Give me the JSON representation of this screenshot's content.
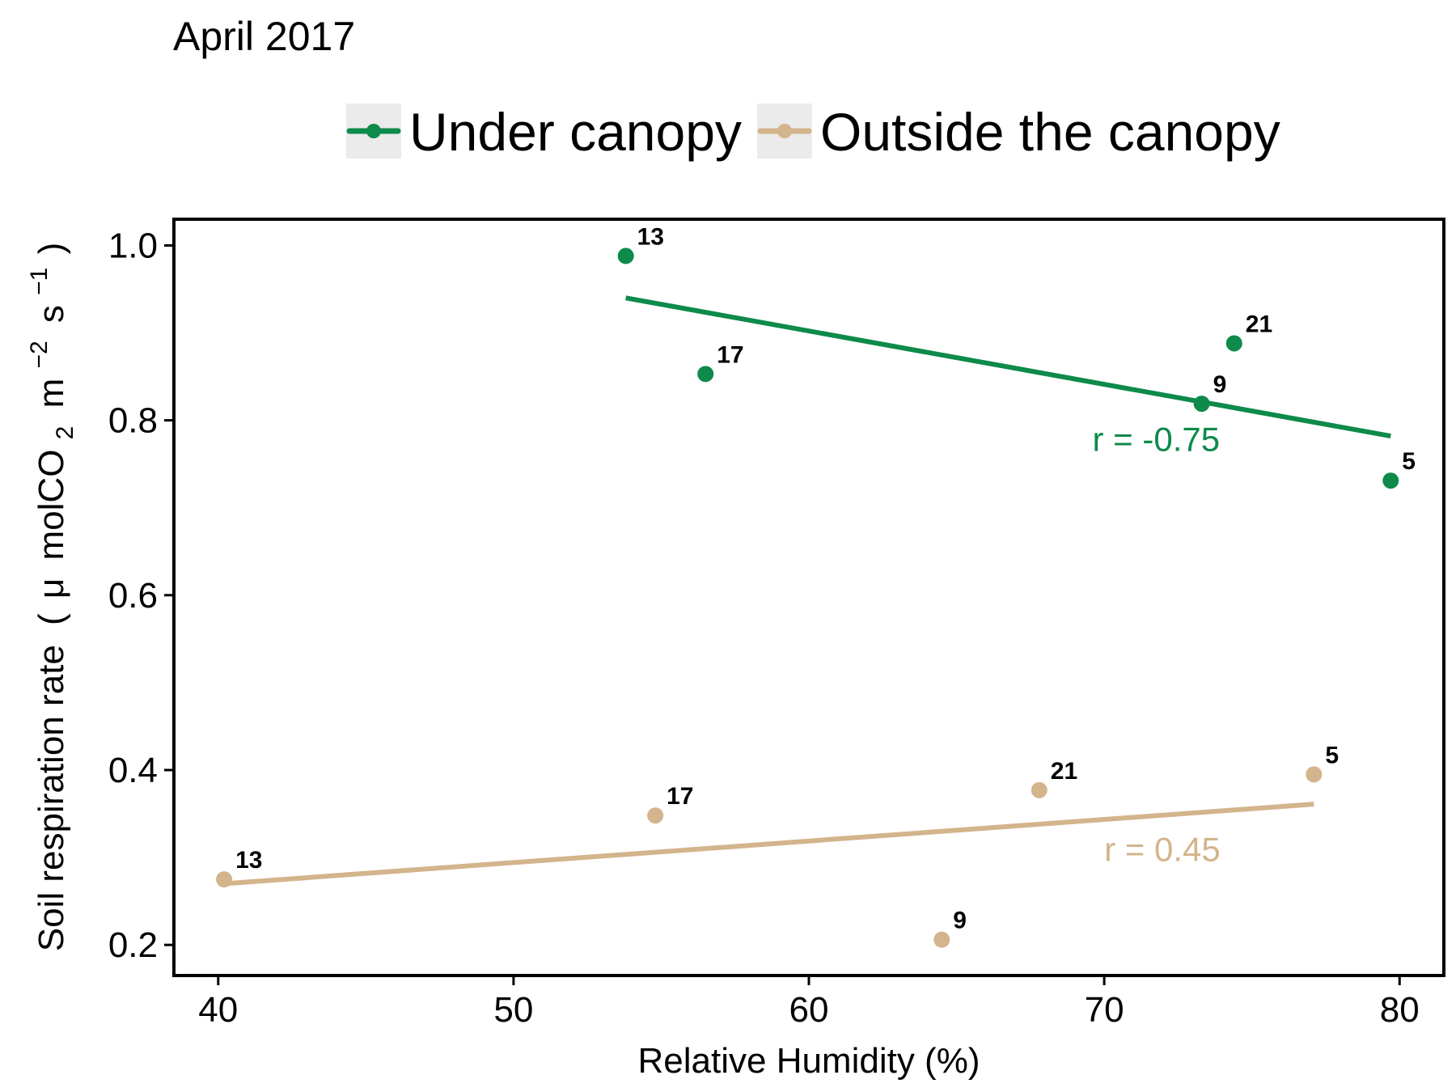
{
  "chart_data": {
    "type": "scatter",
    "title": "April 2017",
    "xlabel": "Relative Humidity (%)",
    "ylabel": {
      "main": "Soil respiration rate",
      "unit_open": "(",
      "mu": "μ",
      "mol": "molCO",
      "sub2": "2",
      "m": "m",
      "sup_m": "−2",
      "s": "s",
      "sup_s": "−1",
      "unit_close": ")"
    },
    "xlim": [
      38.5,
      81.5
    ],
    "ylim": [
      0.165,
      1.03
    ],
    "x_ticks": [
      40,
      50,
      60,
      70,
      80
    ],
    "x_tick_labels": [
      "40",
      "50",
      "60",
      "70",
      "80"
    ],
    "y_ticks": [
      0.2,
      0.4,
      0.6,
      0.8,
      1.0
    ],
    "y_tick_labels": [
      "0.2",
      "0.4",
      "0.6",
      "0.8",
      "1.0"
    ],
    "grid": false,
    "legend_position": "top",
    "series": [
      {
        "name": "Under canopy",
        "color": "#0e8a4a",
        "points": [
          {
            "x": 53.8,
            "y": 0.988,
            "label": "13"
          },
          {
            "x": 56.5,
            "y": 0.853,
            "label": "17"
          },
          {
            "x": 73.3,
            "y": 0.819,
            "label": "9"
          },
          {
            "x": 74.4,
            "y": 0.888,
            "label": "21"
          },
          {
            "x": 79.7,
            "y": 0.731,
            "label": "5"
          }
        ],
        "trend": {
          "x": [
            53.8,
            79.7
          ],
          "y": [
            0.94,
            0.782
          ]
        },
        "r_label": "r = -0.75",
        "r_label_pos": {
          "x": 69.6,
          "y": 0.765
        }
      },
      {
        "name": "Outside the canopy",
        "color": "#d4b48c",
        "points": [
          {
            "x": 40.2,
            "y": 0.275,
            "label": "13"
          },
          {
            "x": 54.8,
            "y": 0.348,
            "label": "17"
          },
          {
            "x": 64.5,
            "y": 0.206,
            "label": "9"
          },
          {
            "x": 67.8,
            "y": 0.377,
            "label": "21"
          },
          {
            "x": 77.1,
            "y": 0.395,
            "label": "5"
          }
        ],
        "trend": {
          "x": [
            40.2,
            77.1
          ],
          "y": [
            0.27,
            0.361
          ]
        },
        "r_label": "r = 0.45",
        "r_label_pos": {
          "x": 70.0,
          "y": 0.296
        }
      }
    ]
  }
}
